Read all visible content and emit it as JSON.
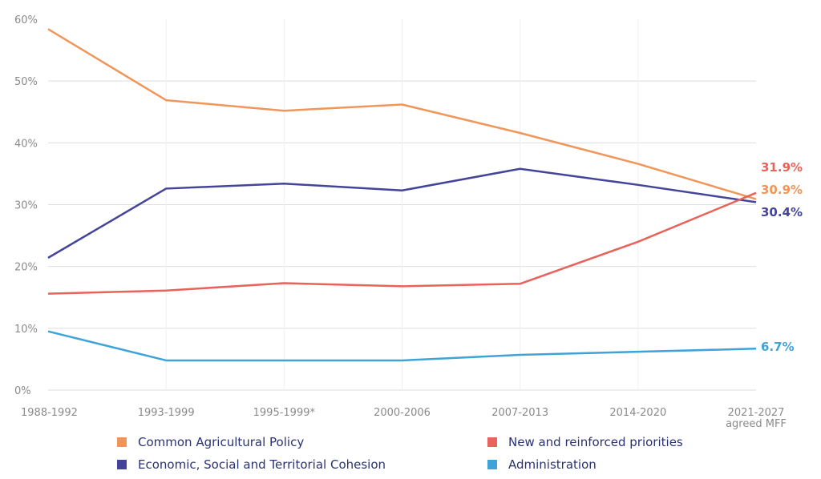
{
  "chart_data": {
    "type": "line",
    "title": "",
    "xlabel": "",
    "ylabel": "",
    "x": [
      "1988-1992",
      "1993-1999",
      "1995-1999*",
      "2000-2006",
      "2007-2013",
      "2014-2020",
      "2021-2027"
    ],
    "x_sublabels": [
      "",
      "",
      "",
      "",
      "",
      "",
      "agreed MFF"
    ],
    "ylim": [
      0,
      60
    ],
    "yticks": [
      0,
      10,
      20,
      30,
      40,
      50,
      60
    ],
    "ytick_labels": [
      "0%",
      "10%",
      "20%",
      "30%",
      "40%",
      "50%",
      "60%"
    ],
    "grid": "horizontal and vertical",
    "legend_position": "bottom",
    "series": [
      {
        "name": "Common Agricultural Policy",
        "color": "#f0965a",
        "values": [
          58.4,
          46.9,
          45.2,
          46.2,
          41.6,
          36.6,
          30.9
        ],
        "end_label": "30.9%"
      },
      {
        "name": "Economic, Social and Territorial Cohesion",
        "color": "#44449a",
        "values": [
          21.4,
          32.6,
          33.4,
          32.3,
          35.8,
          33.2,
          30.4
        ],
        "end_label": "30.4%"
      },
      {
        "name": "New and reinforced priorities",
        "color": "#e8635a",
        "values": [
          15.6,
          16.1,
          17.3,
          16.8,
          17.2,
          24.0,
          31.9
        ],
        "end_label": "31.9%"
      },
      {
        "name": "Administration",
        "color": "#3fa3d8",
        "values": [
          9.5,
          4.8,
          4.8,
          4.8,
          5.7,
          6.2,
          6.7
        ],
        "end_label": "6.7%"
      }
    ]
  },
  "legend": [
    {
      "label": "Common Agricultural Policy",
      "color": "#f0965a"
    },
    {
      "label": "New and reinforced priorities",
      "color": "#e8635a"
    },
    {
      "label": "Economic, Social and Territorial Cohesion",
      "color": "#44449a"
    },
    {
      "label": "Administration",
      "color": "#3fa3d8"
    }
  ]
}
